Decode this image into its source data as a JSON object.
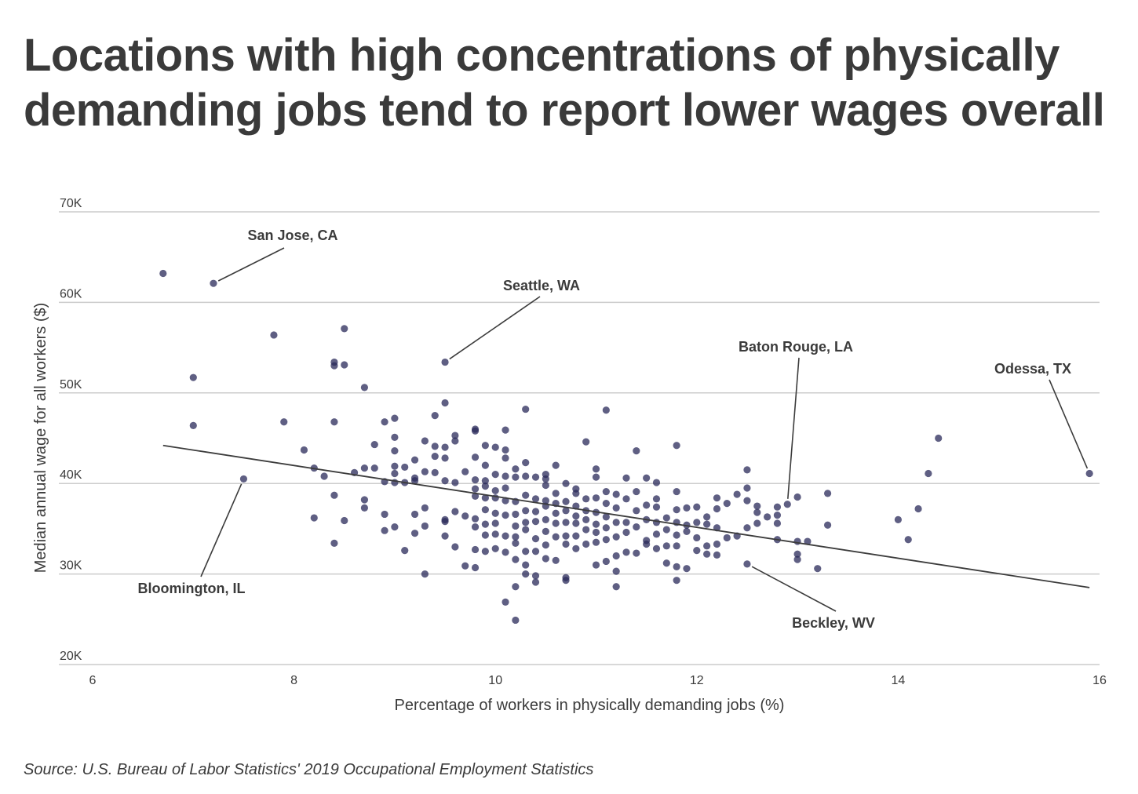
{
  "title_lines": [
    "Locations with high concentrations of physically",
    "demanding jobs tend to report lower wages overall"
  ],
  "source": "Source: U.S. Bureau of Labor Statistics' 2019 Occupational Employment Statistics",
  "chart_data": {
    "type": "scatter",
    "xlabel": "Percentage of workers in physically demanding jobs (%)",
    "ylabel": "Median annual wage for all workers ($)",
    "xlim": [
      6,
      16
    ],
    "ylim": [
      20000,
      70000
    ],
    "x_ticks": [
      {
        "value": 6,
        "label": "6"
      },
      {
        "value": 8,
        "label": "8"
      },
      {
        "value": 10,
        "label": "10"
      },
      {
        "value": 12,
        "label": "12"
      },
      {
        "value": 14,
        "label": "14"
      },
      {
        "value": 16,
        "label": "16"
      }
    ],
    "y_ticks": [
      {
        "value": 20000,
        "label": "20K"
      },
      {
        "value": 30000,
        "label": "30K"
      },
      {
        "value": 40000,
        "label": "40K"
      },
      {
        "value": 50000,
        "label": "50K"
      },
      {
        "value": 60000,
        "label": "60K"
      },
      {
        "value": 70000,
        "label": "70K"
      }
    ],
    "grid": "horizontal",
    "colors": {
      "point": "#2a2a5a",
      "trend": "#3c3c3c",
      "grid": "#cccccc"
    },
    "trendline": {
      "x": [
        6.7,
        15.9
      ],
      "y": [
        44200,
        28500
      ]
    },
    "annotations": [
      {
        "label": "San Jose, CA",
        "x": 7.2,
        "y": 62100
      },
      {
        "label": "Seattle, WA",
        "x": 9.5,
        "y": 53400
      },
      {
        "label": "Baton Rouge, LA",
        "x": 12.9,
        "y": 37700
      },
      {
        "label": "Odessa, TX",
        "x": 15.9,
        "y": 41100
      },
      {
        "label": "Bloomington, IL",
        "x": 7.5,
        "y": 40500
      },
      {
        "label": "Beckley, WV",
        "x": 12.5,
        "y": 31100
      }
    ],
    "points": [
      [
        6.7,
        63200
      ],
      [
        7.2,
        62100
      ],
      [
        7.0,
        51700
      ],
      [
        7.0,
        46400
      ],
      [
        7.5,
        40500
      ],
      [
        7.8,
        56400
      ],
      [
        7.9,
        46800
      ],
      [
        8.1,
        43700
      ],
      [
        8.2,
        41700
      ],
      [
        8.2,
        36200
      ],
      [
        8.3,
        40800
      ],
      [
        8.4,
        53400
      ],
      [
        8.4,
        53000
      ],
      [
        8.4,
        46800
      ],
      [
        8.4,
        38700
      ],
      [
        8.4,
        33400
      ],
      [
        8.5,
        57100
      ],
      [
        8.5,
        53100
      ],
      [
        8.5,
        35900
      ],
      [
        8.6,
        41200
      ],
      [
        8.7,
        50600
      ],
      [
        8.7,
        41700
      ],
      [
        8.7,
        38200
      ],
      [
        8.7,
        37300
      ],
      [
        8.8,
        44300
      ],
      [
        8.8,
        41700
      ],
      [
        8.9,
        46800
      ],
      [
        8.9,
        40200
      ],
      [
        8.9,
        36600
      ],
      [
        8.9,
        34800
      ],
      [
        9.0,
        47200
      ],
      [
        9.0,
        45100
      ],
      [
        9.0,
        43600
      ],
      [
        9.0,
        41900
      ],
      [
        9.0,
        41100
      ],
      [
        9.0,
        40100
      ],
      [
        9.0,
        35200
      ],
      [
        9.1,
        41800
      ],
      [
        9.1,
        40100
      ],
      [
        9.1,
        32600
      ],
      [
        9.2,
        42600
      ],
      [
        9.2,
        40600
      ],
      [
        9.2,
        40300
      ],
      [
        9.2,
        36600
      ],
      [
        9.2,
        34500
      ],
      [
        9.3,
        44700
      ],
      [
        9.3,
        41300
      ],
      [
        9.3,
        37300
      ],
      [
        9.3,
        35300
      ],
      [
        9.3,
        30000
      ],
      [
        9.4,
        47500
      ],
      [
        9.4,
        44100
      ],
      [
        9.4,
        43000
      ],
      [
        9.4,
        41200
      ],
      [
        9.5,
        53400
      ],
      [
        9.5,
        48900
      ],
      [
        9.5,
        44000
      ],
      [
        9.5,
        42800
      ],
      [
        9.5,
        40300
      ],
      [
        9.5,
        36000
      ],
      [
        9.5,
        35800
      ],
      [
        9.5,
        34200
      ],
      [
        9.6,
        45300
      ],
      [
        9.6,
        44700
      ],
      [
        9.6,
        40100
      ],
      [
        9.6,
        36900
      ],
      [
        9.6,
        33000
      ],
      [
        9.7,
        41300
      ],
      [
        9.7,
        36400
      ],
      [
        9.7,
        30900
      ],
      [
        9.8,
        46000
      ],
      [
        9.8,
        45800
      ],
      [
        9.8,
        42900
      ],
      [
        9.8,
        40400
      ],
      [
        9.8,
        39400
      ],
      [
        9.8,
        38600
      ],
      [
        9.8,
        36100
      ],
      [
        9.8,
        35200
      ],
      [
        9.8,
        32700
      ],
      [
        9.8,
        30700
      ],
      [
        9.9,
        44200
      ],
      [
        9.9,
        42000
      ],
      [
        9.9,
        40300
      ],
      [
        9.9,
        39700
      ],
      [
        9.9,
        38400
      ],
      [
        9.9,
        37100
      ],
      [
        9.9,
        35500
      ],
      [
        9.9,
        34300
      ],
      [
        9.9,
        32500
      ],
      [
        10.0,
        44000
      ],
      [
        10.0,
        41000
      ],
      [
        10.0,
        39200
      ],
      [
        10.0,
        38400
      ],
      [
        10.0,
        36700
      ],
      [
        10.0,
        35600
      ],
      [
        10.0,
        34400
      ],
      [
        10.0,
        32800
      ],
      [
        10.1,
        45900
      ],
      [
        10.1,
        43700
      ],
      [
        10.1,
        42800
      ],
      [
        10.1,
        40800
      ],
      [
        10.1,
        39500
      ],
      [
        10.1,
        38100
      ],
      [
        10.1,
        36500
      ],
      [
        10.1,
        34200
      ],
      [
        10.1,
        32400
      ],
      [
        10.1,
        26900
      ],
      [
        10.2,
        41600
      ],
      [
        10.2,
        40700
      ],
      [
        10.2,
        38000
      ],
      [
        10.2,
        36600
      ],
      [
        10.2,
        35300
      ],
      [
        10.2,
        34100
      ],
      [
        10.2,
        33400
      ],
      [
        10.2,
        31600
      ],
      [
        10.2,
        28600
      ],
      [
        10.2,
        24900
      ],
      [
        10.3,
        48200
      ],
      [
        10.3,
        42300
      ],
      [
        10.3,
        40800
      ],
      [
        10.3,
        38700
      ],
      [
        10.3,
        37000
      ],
      [
        10.3,
        35700
      ],
      [
        10.3,
        34900
      ],
      [
        10.3,
        32500
      ],
      [
        10.3,
        31000
      ],
      [
        10.3,
        30000
      ],
      [
        10.4,
        40700
      ],
      [
        10.4,
        38300
      ],
      [
        10.4,
        36900
      ],
      [
        10.4,
        35800
      ],
      [
        10.4,
        33900
      ],
      [
        10.4,
        32500
      ],
      [
        10.4,
        29800
      ],
      [
        10.4,
        29100
      ],
      [
        10.5,
        41000
      ],
      [
        10.5,
        40500
      ],
      [
        10.5,
        39800
      ],
      [
        10.5,
        38100
      ],
      [
        10.5,
        37500
      ],
      [
        10.5,
        36000
      ],
      [
        10.5,
        34700
      ],
      [
        10.5,
        33200
      ],
      [
        10.5,
        31700
      ],
      [
        10.6,
        42000
      ],
      [
        10.6,
        38900
      ],
      [
        10.6,
        37800
      ],
      [
        10.6,
        36700
      ],
      [
        10.6,
        35600
      ],
      [
        10.6,
        34100
      ],
      [
        10.6,
        31500
      ],
      [
        10.7,
        40000
      ],
      [
        10.7,
        38000
      ],
      [
        10.7,
        37000
      ],
      [
        10.7,
        35700
      ],
      [
        10.7,
        34200
      ],
      [
        10.7,
        33300
      ],
      [
        10.7,
        29600
      ],
      [
        10.7,
        29300
      ],
      [
        10.8,
        39400
      ],
      [
        10.8,
        38900
      ],
      [
        10.8,
        37500
      ],
      [
        10.8,
        36400
      ],
      [
        10.8,
        35600
      ],
      [
        10.8,
        34200
      ],
      [
        10.8,
        32800
      ],
      [
        10.9,
        44600
      ],
      [
        10.9,
        38300
      ],
      [
        10.9,
        37000
      ],
      [
        10.9,
        36000
      ],
      [
        10.9,
        34900
      ],
      [
        10.9,
        33300
      ],
      [
        11.0,
        41600
      ],
      [
        11.0,
        40700
      ],
      [
        11.0,
        38400
      ],
      [
        11.0,
        36800
      ],
      [
        11.0,
        35500
      ],
      [
        11.0,
        34600
      ],
      [
        11.0,
        33500
      ],
      [
        11.0,
        31000
      ],
      [
        11.1,
        48100
      ],
      [
        11.1,
        39100
      ],
      [
        11.1,
        37800
      ],
      [
        11.1,
        36300
      ],
      [
        11.1,
        35100
      ],
      [
        11.1,
        33800
      ],
      [
        11.1,
        31400
      ],
      [
        11.2,
        38800
      ],
      [
        11.2,
        37300
      ],
      [
        11.2,
        35700
      ],
      [
        11.2,
        34100
      ],
      [
        11.2,
        32000
      ],
      [
        11.2,
        30300
      ],
      [
        11.2,
        28600
      ],
      [
        11.3,
        40600
      ],
      [
        11.3,
        38300
      ],
      [
        11.3,
        35700
      ],
      [
        11.3,
        34600
      ],
      [
        11.3,
        32400
      ],
      [
        11.4,
        43600
      ],
      [
        11.4,
        39100
      ],
      [
        11.4,
        37000
      ],
      [
        11.4,
        35200
      ],
      [
        11.4,
        32300
      ],
      [
        11.5,
        40600
      ],
      [
        11.5,
        37600
      ],
      [
        11.5,
        36000
      ],
      [
        11.5,
        33700
      ],
      [
        11.5,
        33300
      ],
      [
        11.6,
        40100
      ],
      [
        11.6,
        38300
      ],
      [
        11.6,
        37400
      ],
      [
        11.6,
        35700
      ],
      [
        11.6,
        34400
      ],
      [
        11.6,
        32800
      ],
      [
        11.7,
        36200
      ],
      [
        11.7,
        34900
      ],
      [
        11.7,
        33100
      ],
      [
        11.7,
        31200
      ],
      [
        11.8,
        44200
      ],
      [
        11.8,
        39100
      ],
      [
        11.8,
        37100
      ],
      [
        11.8,
        35700
      ],
      [
        11.8,
        34300
      ],
      [
        11.8,
        33100
      ],
      [
        11.8,
        30800
      ],
      [
        11.8,
        29300
      ],
      [
        11.9,
        37300
      ],
      [
        11.9,
        35400
      ],
      [
        11.9,
        34700
      ],
      [
        11.9,
        30600
      ],
      [
        12.0,
        37400
      ],
      [
        12.0,
        35700
      ],
      [
        12.0,
        34000
      ],
      [
        12.0,
        32600
      ],
      [
        12.1,
        36300
      ],
      [
        12.1,
        35500
      ],
      [
        12.1,
        33100
      ],
      [
        12.1,
        32200
      ],
      [
        12.2,
        38400
      ],
      [
        12.2,
        37200
      ],
      [
        12.2,
        35100
      ],
      [
        12.2,
        33300
      ],
      [
        12.2,
        32100
      ],
      [
        12.3,
        37800
      ],
      [
        12.3,
        34000
      ],
      [
        12.4,
        38800
      ],
      [
        12.4,
        34200
      ],
      [
        12.5,
        41500
      ],
      [
        12.5,
        39500
      ],
      [
        12.5,
        38100
      ],
      [
        12.5,
        35100
      ],
      [
        12.5,
        31100
      ],
      [
        12.6,
        37500
      ],
      [
        12.6,
        36800
      ],
      [
        12.6,
        35600
      ],
      [
        12.7,
        36300
      ],
      [
        12.8,
        37400
      ],
      [
        12.8,
        36500
      ],
      [
        12.8,
        35600
      ],
      [
        12.8,
        33800
      ],
      [
        12.9,
        37700
      ],
      [
        13.0,
        38500
      ],
      [
        13.0,
        33600
      ],
      [
        13.0,
        32200
      ],
      [
        13.0,
        31600
      ],
      [
        13.1,
        33600
      ],
      [
        13.2,
        30600
      ],
      [
        13.3,
        38900
      ],
      [
        13.3,
        35400
      ],
      [
        14.0,
        36000
      ],
      [
        14.1,
        33800
      ],
      [
        14.2,
        37200
      ],
      [
        14.3,
        41100
      ],
      [
        14.4,
        45000
      ],
      [
        15.9,
        41100
      ]
    ]
  }
}
